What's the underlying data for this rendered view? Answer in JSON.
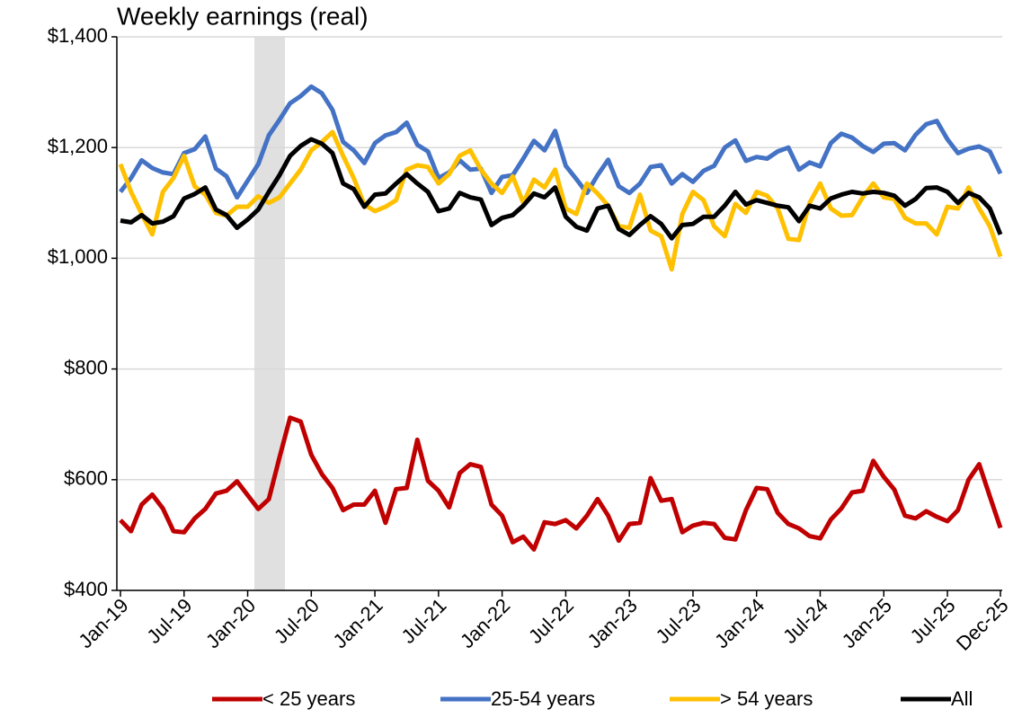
{
  "chart_data": {
    "type": "line",
    "title": "Weekly earnings (real)",
    "categories": [
      "Jan-19",
      null,
      null,
      null,
      null,
      null,
      "Jul-19",
      null,
      null,
      null,
      null,
      null,
      "Jan-20",
      null,
      null,
      null,
      null,
      null,
      "Jul-20",
      null,
      null,
      null,
      null,
      null,
      "Jan-21",
      null,
      null,
      null,
      null,
      null,
      "Jul-21",
      null,
      null,
      null,
      null,
      null,
      "Jan-22",
      null,
      null,
      null,
      null,
      null,
      "Jul-22",
      null,
      null,
      null,
      null,
      null,
      "Jan-23",
      null,
      null,
      null,
      null,
      null,
      "Jul-23",
      null,
      null,
      null,
      null,
      null,
      "Jan-24",
      null,
      null,
      null,
      null,
      null,
      "Jul-24",
      null,
      null,
      null,
      null,
      null,
      "Jan-25",
      null,
      null,
      null,
      null,
      null,
      "Jul-25",
      null,
      null,
      null,
      null,
      "Dec-25"
    ],
    "series": [
      {
        "name": "< 25 years",
        "color": "#c00000",
        "values": [
          527,
          507,
          555,
          573,
          548,
          507,
          505,
          530,
          547,
          575,
          580,
          597,
          572,
          547,
          565,
          640,
          712,
          705,
          645,
          610,
          585,
          545,
          555,
          555,
          580,
          522,
          583,
          585,
          672,
          598,
          580,
          550,
          612,
          628,
          623,
          555,
          535,
          487,
          497,
          474,
          523,
          520,
          527,
          512,
          535,
          565,
          535,
          490,
          520,
          522,
          603,
          562,
          565,
          505,
          517,
          522,
          520,
          495,
          492,
          545,
          585,
          583,
          540,
          520,
          512,
          498,
          494,
          528,
          548,
          577,
          580,
          634,
          605,
          582,
          535,
          530,
          543,
          533,
          525,
          545,
          600,
          628,
          570,
          513
        ]
      },
      {
        "name": "25-54 years",
        "color": "#4472c4",
        "values": [
          1120,
          1145,
          1177,
          1163,
          1155,
          1152,
          1190,
          1197,
          1220,
          1162,
          1148,
          1110,
          1140,
          1170,
          1222,
          1250,
          1280,
          1293,
          1310,
          1298,
          1268,
          1210,
          1195,
          1172,
          1208,
          1222,
          1228,
          1245,
          1205,
          1193,
          1145,
          1155,
          1177,
          1160,
          1162,
          1118,
          1147,
          1150,
          1180,
          1212,
          1195,
          1230,
          1167,
          1143,
          1118,
          1150,
          1178,
          1130,
          1118,
          1135,
          1165,
          1168,
          1135,
          1152,
          1138,
          1158,
          1167,
          1200,
          1213,
          1176,
          1183,
          1180,
          1193,
          1200,
          1160,
          1173,
          1166,
          1208,
          1225,
          1218,
          1203,
          1192,
          1207,
          1208,
          1195,
          1223,
          1242,
          1248,
          1215,
          1190,
          1198,
          1202,
          1193,
          1153
        ]
      },
      {
        "name": "> 54 years",
        "color": "#ffc000",
        "values": [
          1170,
          1120,
          1080,
          1043,
          1120,
          1145,
          1185,
          1130,
          1115,
          1082,
          1077,
          1093,
          1093,
          1112,
          1100,
          1110,
          1135,
          1160,
          1195,
          1210,
          1228,
          1185,
          1145,
          1097,
          1085,
          1093,
          1105,
          1160,
          1168,
          1165,
          1135,
          1152,
          1185,
          1195,
          1160,
          1135,
          1118,
          1148,
          1100,
          1142,
          1128,
          1160,
          1090,
          1080,
          1135,
          1117,
          1095,
          1058,
          1055,
          1115,
          1050,
          1040,
          980,
          1080,
          1120,
          1105,
          1058,
          1040,
          1098,
          1082,
          1120,
          1113,
          1090,
          1035,
          1033,
          1100,
          1135,
          1090,
          1077,
          1078,
          1110,
          1135,
          1110,
          1107,
          1073,
          1063,
          1063,
          1043,
          1093,
          1090,
          1128,
          1090,
          1058,
          1003
        ]
      },
      {
        "name": "All",
        "color": "#000000",
        "values": [
          1068,
          1065,
          1078,
          1063,
          1066,
          1076,
          1108,
          1116,
          1128,
          1088,
          1078,
          1055,
          1070,
          1088,
          1120,
          1150,
          1185,
          1203,
          1215,
          1207,
          1190,
          1135,
          1125,
          1093,
          1115,
          1117,
          1135,
          1152,
          1135,
          1120,
          1085,
          1090,
          1118,
          1110,
          1106,
          1060,
          1073,
          1078,
          1095,
          1117,
          1110,
          1128,
          1075,
          1057,
          1050,
          1090,
          1095,
          1053,
          1042,
          1060,
          1076,
          1062,
          1036,
          1060,
          1062,
          1075,
          1075,
          1095,
          1120,
          1097,
          1105,
          1100,
          1095,
          1092,
          1067,
          1095,
          1090,
          1108,
          1115,
          1120,
          1117,
          1120,
          1118,
          1113,
          1095,
          1107,
          1127,
          1128,
          1120,
          1100,
          1118,
          1110,
          1090,
          1043
        ]
      }
    ],
    "ylim": [
      400,
      1400
    ],
    "yticks": [
      {
        "value": 400,
        "label": "$400"
      },
      {
        "value": 600,
        "label": "$600"
      },
      {
        "value": 800,
        "label": "$800"
      },
      {
        "value": 1000,
        "label": "$1,000"
      },
      {
        "value": 1200,
        "label": "$1,200"
      },
      {
        "value": 1400,
        "label": "$1,400"
      }
    ],
    "grid": true,
    "legend": "bottom"
  }
}
